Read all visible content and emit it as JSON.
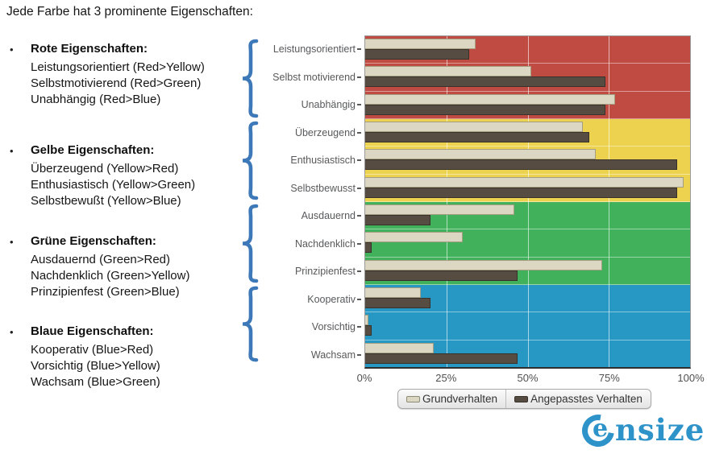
{
  "title": "Jede Farbe hat 3 prominente Eigenschaften:",
  "groups": [
    {
      "heading": "Rote Eigenschaften:",
      "items": [
        "Leistungsorientiert (Red>Yellow)",
        "Selbstmotivierend (Red>Green)",
        "Unabhängig (Red>Blue)"
      ]
    },
    {
      "heading": "Gelbe Eigenschaften:",
      "items": [
        "Überzeugend (Yellow>Red)",
        "Enthusiastisch (Yellow>Green)",
        "Selbstbewußt (Yellow>Blue)"
      ]
    },
    {
      "heading": "Grüne Eigenschaften:",
      "items": [
        "Ausdauernd (Green>Red)",
        "Nachdenklich (Green>Yellow)",
        "Prinzipienfest (Green>Blue)"
      ]
    },
    {
      "heading": "Blaue Eigenschaften:",
      "items": [
        "Kooperativ (Blue>Red)",
        "Vorsichtig (Blue>Yellow)",
        "Wachsam (Blue>Green)"
      ]
    }
  ],
  "chart_data": {
    "type": "bar",
    "orientation": "horizontal",
    "categories": [
      "Leistungsorientiert",
      "Selbst motivierend",
      "Unabhängig",
      "Überzeugend",
      "Enthusiastisch",
      "Selbstbewusst",
      "Ausdauernd",
      "Nachdenklich",
      "Prinzipienfest",
      "Kooperativ",
      "Vorsichtig",
      "Wachsam"
    ],
    "series": [
      {
        "name": "Grundverhalten",
        "color": "#dcd7c3",
        "values": [
          34,
          51,
          77,
          67,
          71,
          98,
          46,
          30,
          73,
          17,
          1,
          21
        ]
      },
      {
        "name": "Angepasstes Verhalten",
        "color": "#574c42",
        "values": [
          32,
          74,
          74,
          69,
          96,
          96,
          20,
          2,
          47,
          20,
          2,
          47
        ]
      }
    ],
    "x_ticks": [
      "0%",
      "25%",
      "50%",
      "75%",
      "100%"
    ],
    "xlim": [
      0,
      100
    ],
    "grid": true,
    "legend_position": "bottom",
    "group_background_colors": [
      "#c04b42",
      "#ecd24f",
      "#41b25b",
      "#2797c4"
    ],
    "group_names": [
      "Rot",
      "Gelb",
      "Grün",
      "Blau"
    ]
  },
  "colors": {
    "brace_blue": "#3d79b8",
    "logo_blue": "#2e93c9"
  },
  "logo": {
    "mark": "e",
    "rest": "nsize"
  }
}
